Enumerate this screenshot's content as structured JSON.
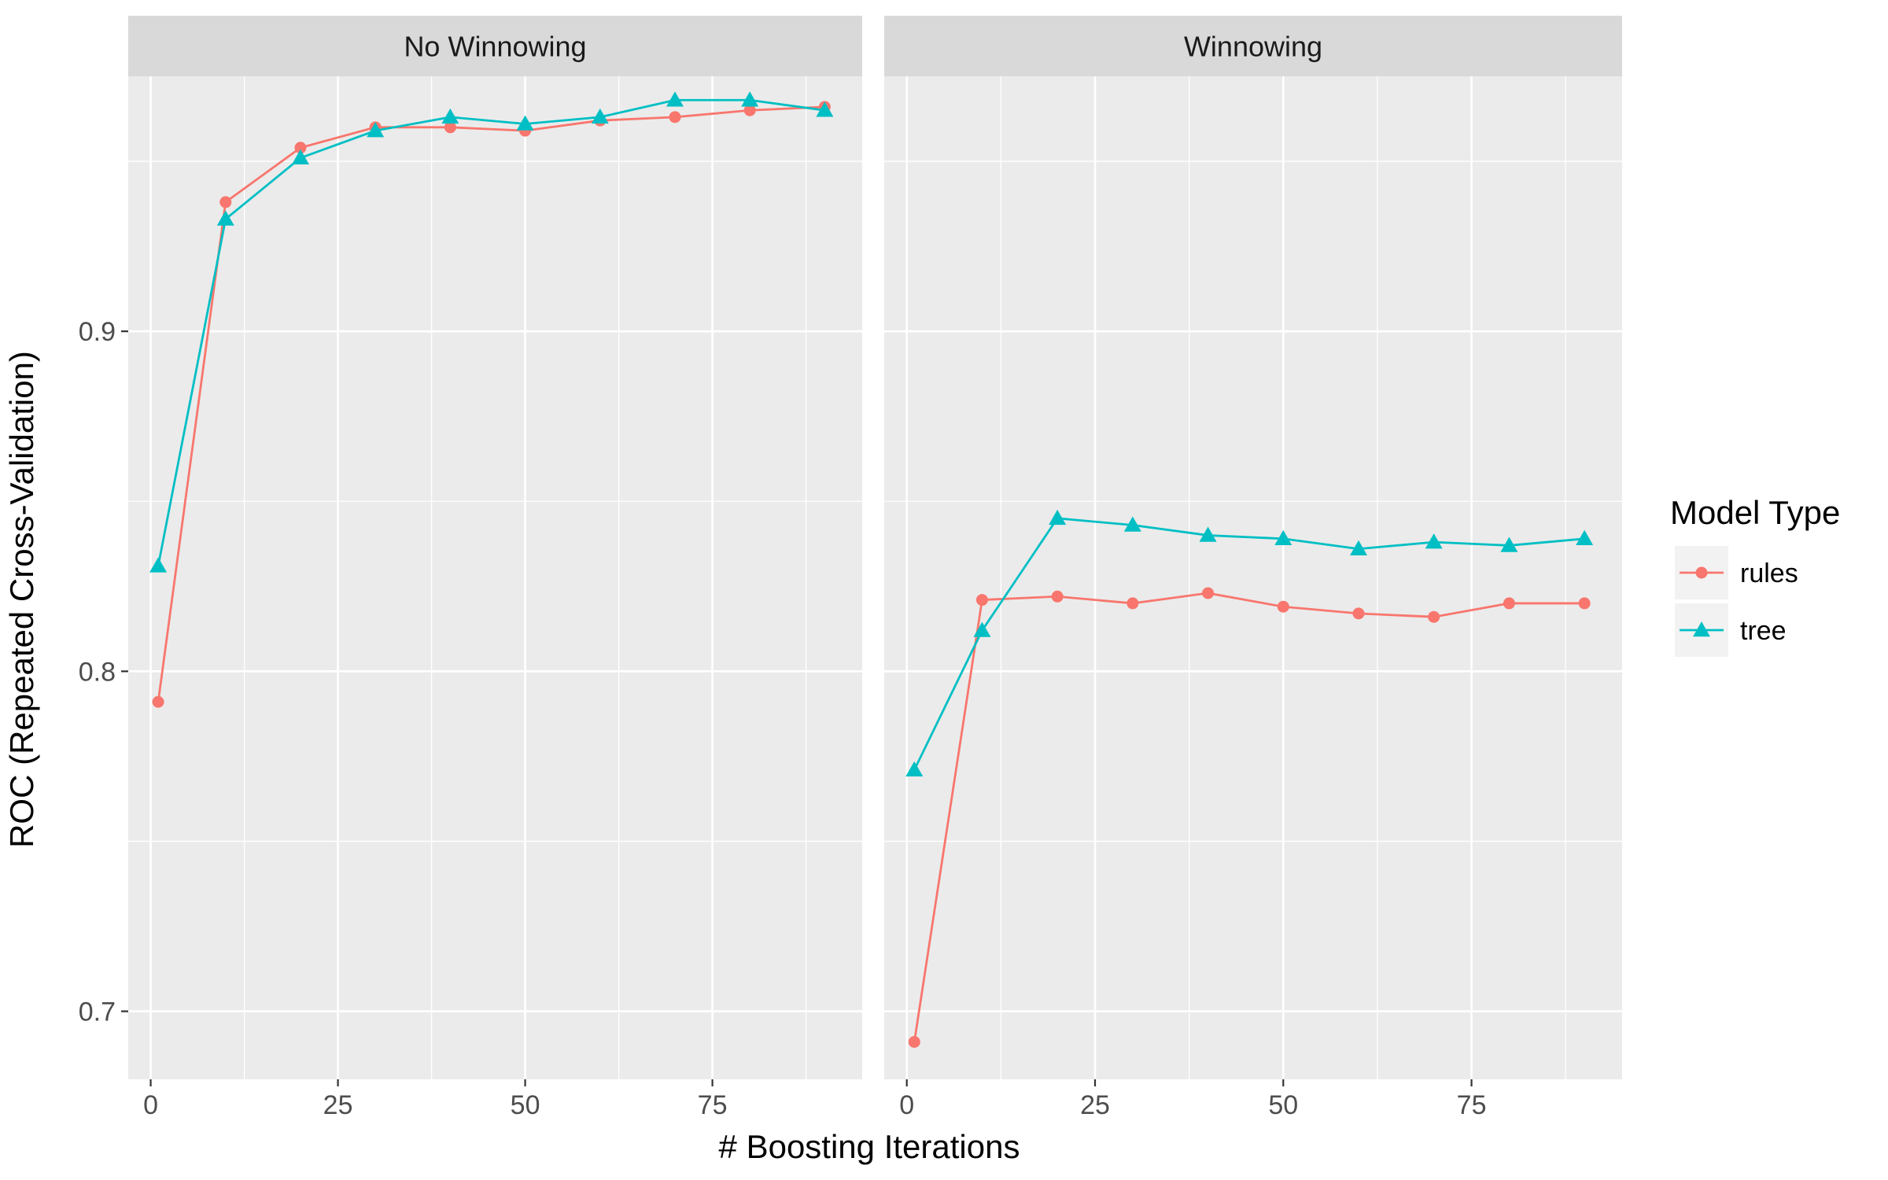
{
  "chart_data": {
    "type": "line",
    "xlabel": "# Boosting Iterations",
    "ylabel": "ROC (Repeated Cross-Validation)",
    "xlim": [
      -3,
      95
    ],
    "ylim": [
      0.68,
      0.975
    ],
    "x_ticks": [
      0,
      25,
      50,
      75
    ],
    "y_ticks": [
      0.7,
      0.8,
      0.9
    ],
    "grid": true,
    "legend": {
      "title": "Model Type",
      "position": "right",
      "entries": [
        {
          "name": "rules",
          "color": "#F8766D",
          "shape": "circle"
        },
        {
          "name": "tree",
          "color": "#00BFC4",
          "shape": "triangle"
        }
      ]
    },
    "panels": [
      {
        "title": "No Winnowing",
        "x": [
          1,
          10,
          20,
          30,
          40,
          50,
          60,
          70,
          80,
          90
        ],
        "series": [
          {
            "name": "rules",
            "values": [
              0.791,
              0.938,
              0.954,
              0.96,
              0.96,
              0.959,
              0.962,
              0.963,
              0.965,
              0.966
            ]
          },
          {
            "name": "tree",
            "values": [
              0.831,
              0.933,
              0.951,
              0.959,
              0.963,
              0.961,
              0.963,
              0.968,
              0.968,
              0.965
            ]
          }
        ]
      },
      {
        "title": "Winnowing",
        "x": [
          1,
          10,
          20,
          30,
          40,
          50,
          60,
          70,
          80,
          90
        ],
        "series": [
          {
            "name": "rules",
            "values": [
              0.691,
              0.821,
              0.822,
              0.82,
              0.823,
              0.819,
              0.817,
              0.816,
              0.82,
              0.82
            ]
          },
          {
            "name": "tree",
            "values": [
              0.771,
              0.812,
              0.845,
              0.843,
              0.84,
              0.839,
              0.836,
              0.838,
              0.837,
              0.839
            ]
          }
        ]
      }
    ]
  }
}
